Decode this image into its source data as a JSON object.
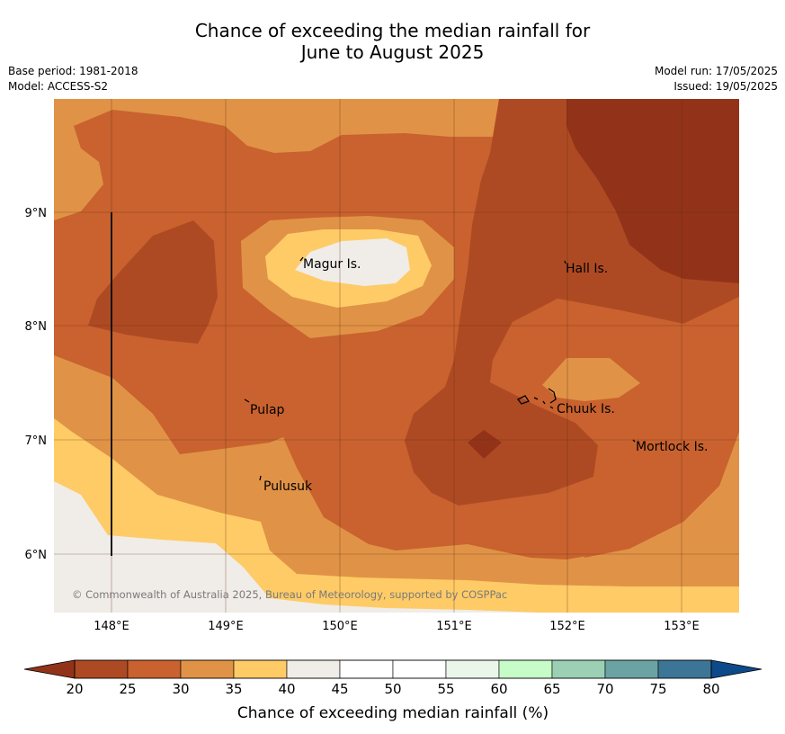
{
  "header": {
    "title_line1": "Chance of exceeding the median rainfall for",
    "title_line2": "June to August 2025",
    "base_period": "Base period: 1981-2018",
    "model": "Model: ACCESS-S2",
    "model_run": "Model run: 17/05/2025",
    "issued": "Issued: 19/05/2025"
  },
  "map": {
    "lat_labels": [
      "9°N",
      "8°N",
      "7°N",
      "6°N"
    ],
    "lon_labels": [
      "148°E",
      "149°E",
      "150°E",
      "151°E",
      "152°E",
      "153°E"
    ],
    "places": [
      {
        "name": "Magur Is."
      },
      {
        "name": "Hall Is."
      },
      {
        "name": "Pulap"
      },
      {
        "name": "Chuuk Is."
      },
      {
        "name": "Mortlock Is."
      },
      {
        "name": "Pulusuk"
      }
    ],
    "copyright": "© Commonwealth of Australia 2025, Bureau of Meteorology, supported by COSPPac"
  },
  "colorbar": {
    "label": "Chance of exceeding median rainfall (%)",
    "ticks": [
      "20",
      "25",
      "30",
      "35",
      "40",
      "45",
      "50",
      "55",
      "60",
      "65",
      "70",
      "75",
      "80"
    ],
    "colors": [
      "#ae4a23",
      "#c9622f",
      "#e09346",
      "#fecb66",
      "#f0ece7",
      "#ffffff",
      "#ffffff",
      "#eaf6e9",
      "#c7fbc8",
      "#9bd0b5",
      "#6ba3a4",
      "#3c7596"
    ],
    "low_color": "#923319",
    "high_color": "#0d4a8a"
  },
  "palette": {
    "c20": "#923319",
    "c25": "#ae4a23",
    "c30": "#c9622f",
    "c35": "#e09346",
    "c40": "#fecb66",
    "c45": "#f0ece7"
  }
}
